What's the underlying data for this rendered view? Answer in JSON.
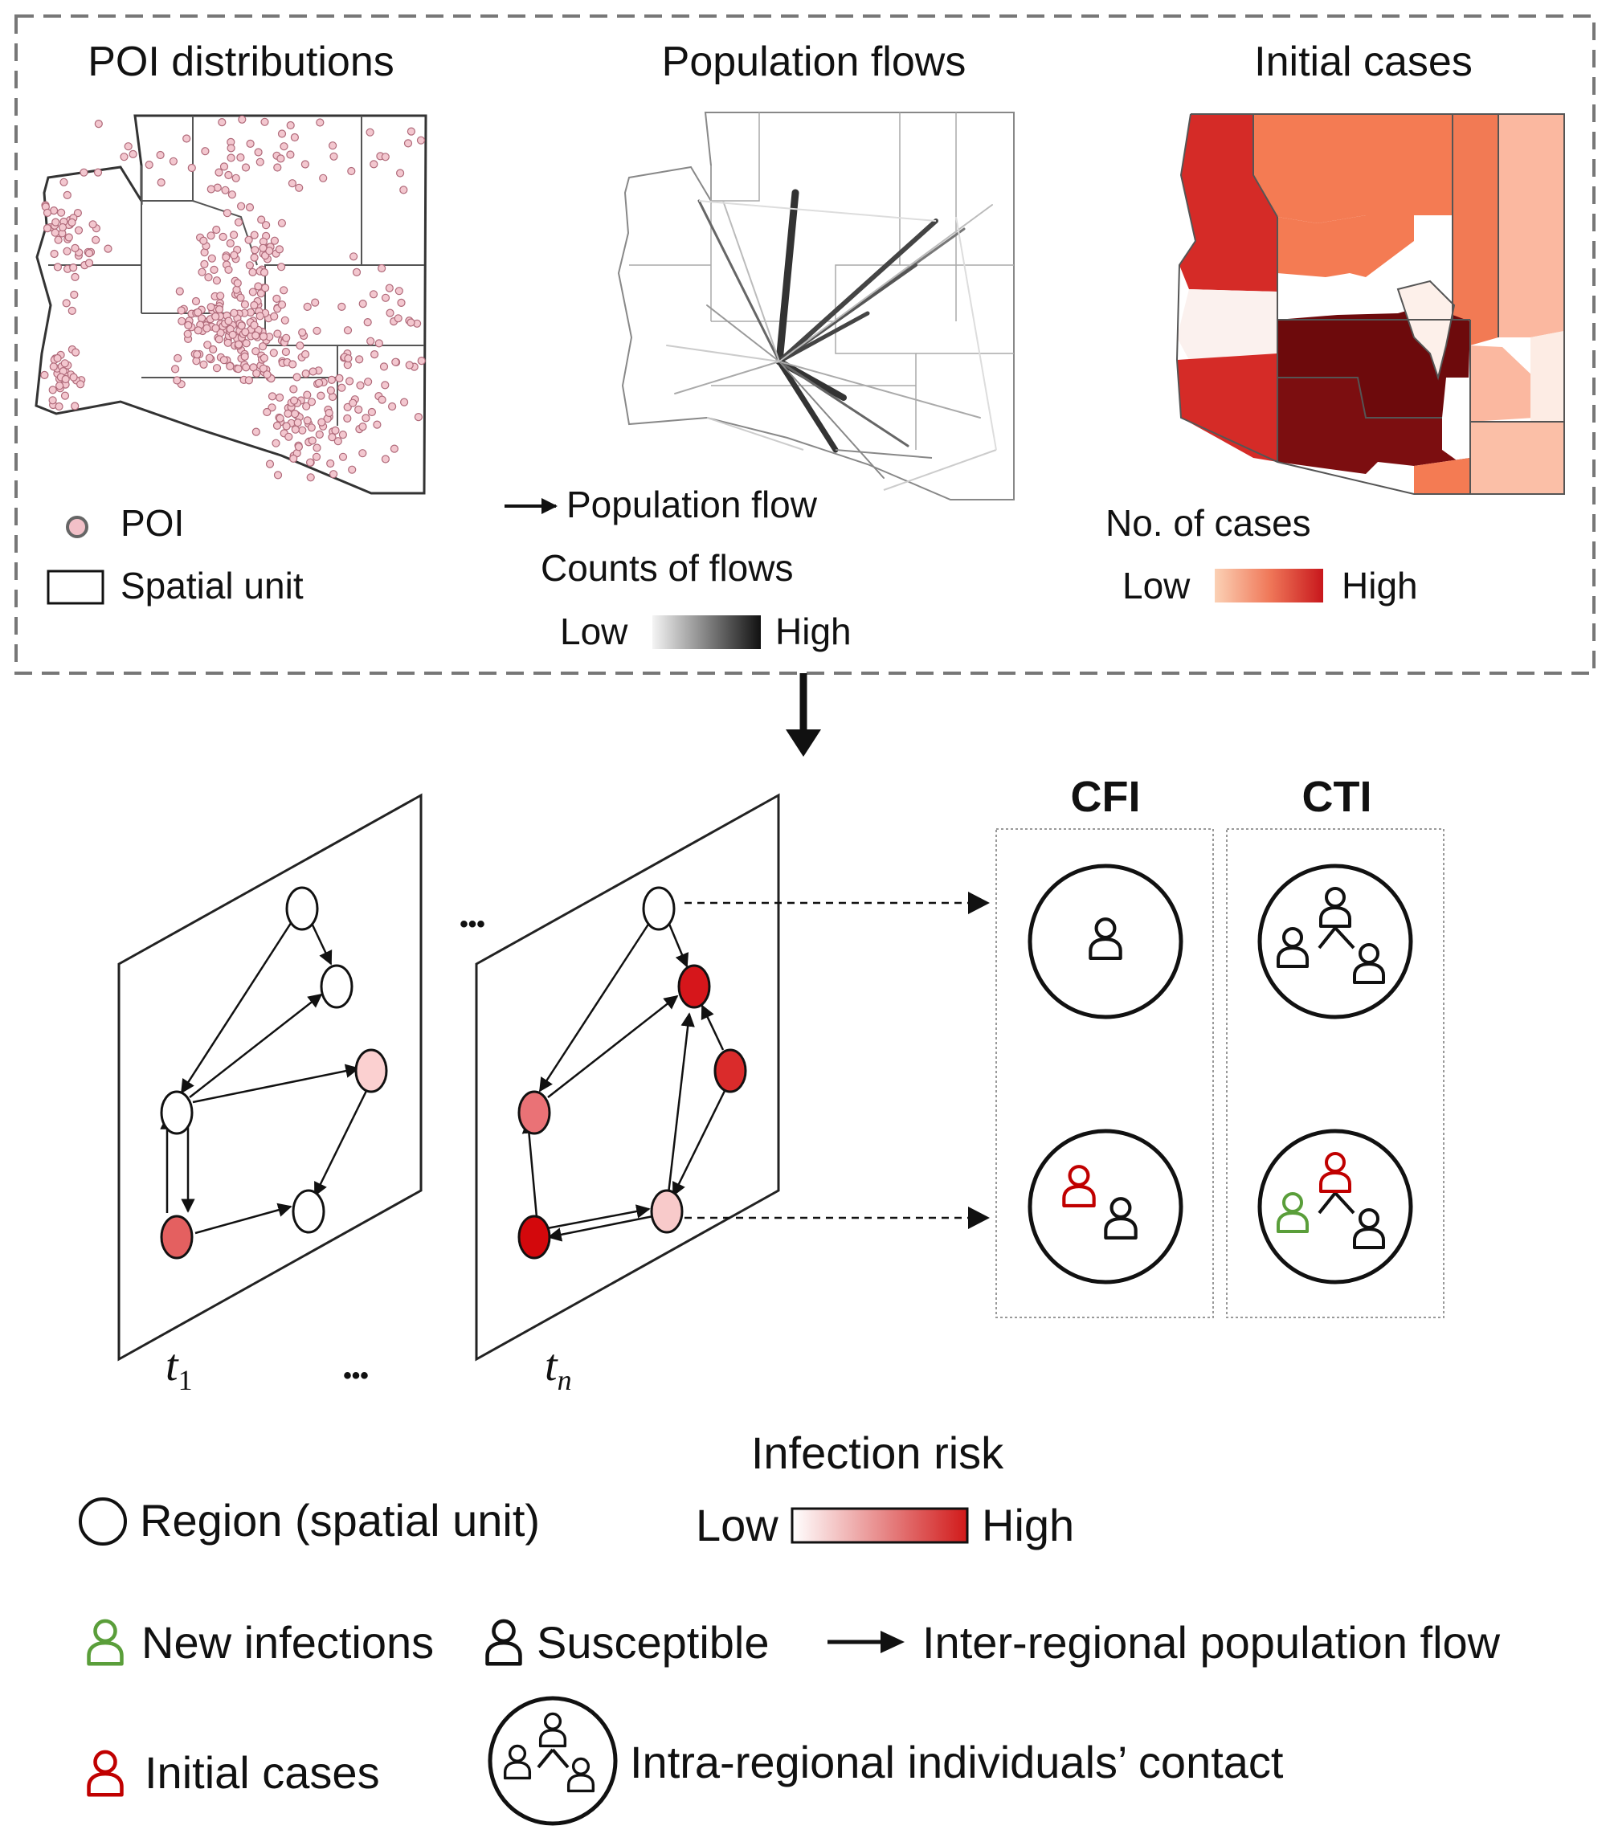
{
  "top_panels": {
    "poi": {
      "title": "POI distributions",
      "legend_poi": "POI",
      "legend_unit": "Spatial unit"
    },
    "flows": {
      "title": "Population flows",
      "legend_flow": "Population flow",
      "counts_label": "Counts of flows",
      "low": "Low",
      "high": "High"
    },
    "cases": {
      "title": "Initial cases",
      "legend_label": "No. of cases",
      "low": "Low",
      "high": "High"
    }
  },
  "middle": {
    "ellipsis": "•••",
    "t1": "t",
    "t1_sub": "1",
    "tn": "t",
    "tn_sub": "n",
    "cfi_label": "CFI",
    "cti_label": "CTI"
  },
  "legend": {
    "risk_title": "Infection risk",
    "risk_low": "Low",
    "risk_high": "High",
    "region": "Region (spatial unit)",
    "new_infections": "New infections",
    "susceptible": "Susceptible",
    "inter_flow": "Inter-regional population flow",
    "initial_cases": "Initial cases",
    "intra_contact": "Intra-regional individuals’ contact"
  },
  "colors": {
    "initial_case": "#c00000",
    "new_infection": "#5a9e3a",
    "susceptible": "#111111",
    "case_high": "#c8171c",
    "case_low": "#fbd1b5"
  }
}
